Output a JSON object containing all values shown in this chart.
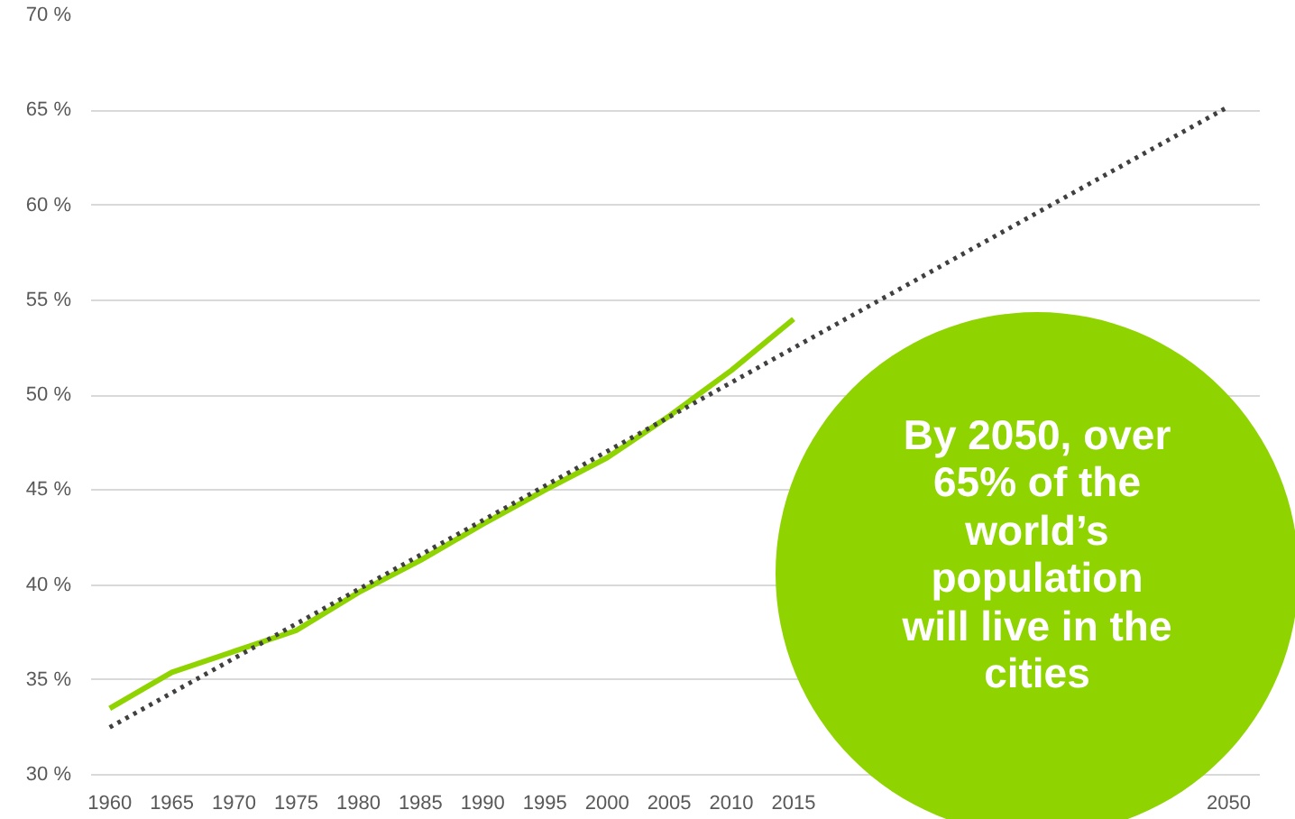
{
  "chart_data": {
    "type": "line",
    "x": [
      1960,
      1965,
      1970,
      1975,
      1980,
      1985,
      1990,
      1995,
      2000,
      2005,
      2010,
      2015
    ],
    "series": [
      {
        "color": "#8fd400",
        "values": [
          33.5,
          35.4,
          36.5,
          37.6,
          39.6,
          41.3,
          43.2,
          45.0,
          46.7,
          48.9,
          51.3,
          54.0
        ]
      },
      {
        "color": "#404040",
        "x": [
          1960,
          2050
        ],
        "values": [
          32.5,
          65.2
        ],
        "line_style": "dotted"
      }
    ],
    "xlim": [
      1958.5,
      2052.5
    ],
    "ylim": [
      30,
      70
    ],
    "xticks": [
      1960,
      1965,
      1970,
      1975,
      1980,
      1985,
      1990,
      1995,
      2000,
      2005,
      2010,
      2015,
      2050
    ],
    "yticks": [
      {
        "value": 30,
        "label": "30 %"
      },
      {
        "value": 35,
        "label": "35 %"
      },
      {
        "value": 40,
        "label": "40 %"
      },
      {
        "value": 45,
        "label": "45 %"
      },
      {
        "value": 50,
        "label": "50 %"
      },
      {
        "value": 55,
        "label": "55 %"
      },
      {
        "value": 60,
        "label": "60 %"
      },
      {
        "value": 65,
        "label": "65 %"
      },
      {
        "value": 70,
        "label": "70 %"
      }
    ],
    "grid": "y",
    "line_style": "solid",
    "annotations": [
      "By 2050, over\n65% of the\nworld’s\npopulation\nwill live in the\ncities"
    ]
  }
}
